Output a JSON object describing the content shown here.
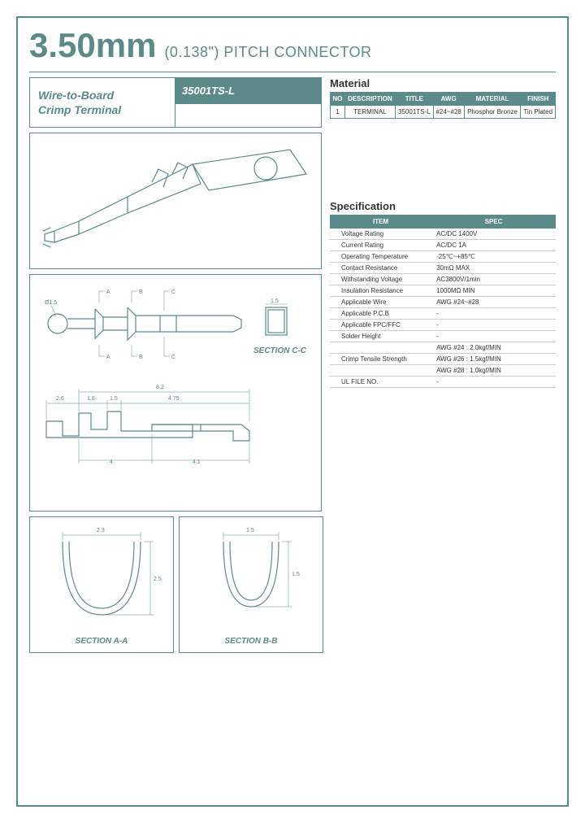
{
  "header": {
    "title_main": "3.50mm",
    "title_sub": "(0.138\") PITCH CONNECTOR"
  },
  "product": {
    "desc_line1": "Wire-to-Board",
    "desc_line2": "Crimp Terminal",
    "part_number": "35001TS-L"
  },
  "material": {
    "heading": "Material",
    "columns": [
      "NO",
      "DESCRIPTION",
      "TITLE",
      "AWG",
      "MATERIAL",
      "FINISH"
    ],
    "rows": [
      [
        "1",
        "TERMINAL",
        "35001TS-L",
        "#24~#28",
        "Phosphor Bronze",
        "Tin Plated"
      ]
    ]
  },
  "specification": {
    "heading": "Specification",
    "columns": [
      "ITEM",
      "SPEC"
    ],
    "rows": [
      [
        "Voltage Rating",
        "AC/DC 1400V"
      ],
      [
        "Current Rating",
        "AC/DC 1A"
      ],
      [
        "Operating Temperature",
        "-25℃~+85℃"
      ],
      [
        "Contact Resistance",
        "30mΩ MAX"
      ],
      [
        "Withstanding Voltage",
        "AC3800V/1min"
      ],
      [
        "Insulation Resistance",
        "1000MΩ MIN"
      ],
      [
        "Applicable Wire",
        "AWG #24~#28"
      ],
      [
        "Applicable P.C.B",
        "-"
      ],
      [
        "Applicable FPC/FFC",
        "-"
      ],
      [
        "Solder Height",
        "-"
      ],
      [
        "",
        "AWG #24 : 2.0kgf/MIN"
      ],
      [
        "Crimp Tensile Strength",
        "AWG #26 : 1.5kgf/MIN"
      ],
      [
        "",
        "AWG #28 : 1.0kgf/MIN"
      ],
      [
        "UL FILE NO.",
        "-"
      ]
    ]
  },
  "labels": {
    "section_cc": "SECTION C-C",
    "section_aa": "SECTION A-A",
    "section_bb": "SECTION B-B"
  },
  "dims": {
    "plan_15": "1.5",
    "plan_a": "A",
    "plan_b": "B",
    "plan_c": "C",
    "elev_82": "8.2",
    "elev_26": "2.6",
    "elev_18": "1.8",
    "elev_15": "1.5",
    "elev_475": "4.75",
    "elev_4": "4",
    "elev_41": "4.1",
    "sec_a_23": "2.3",
    "sec_a_25": "2.5",
    "sec_b_15a": "1.5",
    "sec_b_15b": "1.5",
    "hole_d": "Ø1.5",
    "cc_15": "1.5"
  },
  "colors": {
    "accent": "#5a8a8a",
    "text": "#333333",
    "bg": "#ffffff",
    "grid": "#cccccc"
  }
}
